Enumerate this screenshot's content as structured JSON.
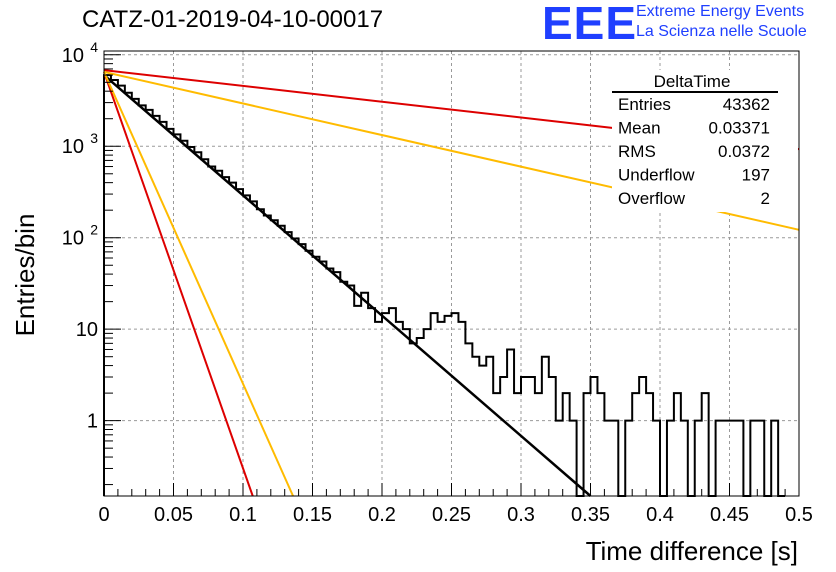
{
  "title": "CATZ-01-2019-04-10-00017",
  "logo": {
    "mark": "EEE",
    "line1": "Extreme Energy Events",
    "line2": "La Scienza nelle Scuole",
    "color": "#1f3fff"
  },
  "stats_box": {
    "title": "DeltaTime",
    "rows": [
      {
        "label": "Entries",
        "value": "43362"
      },
      {
        "label": "Mean",
        "value": "0.03371"
      },
      {
        "label": "RMS",
        "value": "0.0372"
      },
      {
        "label": "Underflow",
        "value": "197"
      },
      {
        "label": "Overflow",
        "value": "2"
      }
    ]
  },
  "chart_data": {
    "type": "line",
    "xlabel": "Time difference [s]",
    "ylabel": "Entries/bin",
    "xlim": [
      0,
      0.5
    ],
    "ylim": [
      0.15,
      11000
    ],
    "yscale": "log",
    "grid": true,
    "x_ticks": [
      "0",
      "0.05",
      "0.1",
      "0.15",
      "0.2",
      "0.25",
      "0.3",
      "0.35",
      "0.4",
      "0.45",
      "0.5"
    ],
    "y_ticks": [
      {
        "value": 1,
        "label": "1"
      },
      {
        "value": 10,
        "label": "10"
      },
      {
        "value": 100,
        "label": "10",
        "exp": "2"
      },
      {
        "value": 1000,
        "label": "10",
        "exp": "3"
      },
      {
        "value": 10000,
        "label": "10",
        "exp": "4"
      }
    ],
    "histogram": {
      "bin_width": 0.005,
      "color": "#000000",
      "values": [
        6000,
        5300,
        4600,
        3850,
        3300,
        2800,
        2500,
        2150,
        1850,
        1550,
        1350,
        1150,
        980,
        860,
        720,
        600,
        540,
        460,
        400,
        340,
        290,
        250,
        205,
        175,
        155,
        135,
        115,
        98,
        85,
        72,
        62,
        55,
        46,
        42,
        33,
        30,
        18,
        25,
        17,
        12,
        15,
        17,
        12,
        10,
        7,
        8,
        10,
        15,
        12,
        14,
        15,
        12,
        7,
        5,
        4,
        5,
        2,
        3,
        6,
        2,
        3,
        3,
        2,
        5,
        3,
        1,
        2,
        1,
        0.15,
        2,
        3,
        2,
        1,
        1,
        0.15,
        1,
        2,
        3,
        2,
        1,
        0.15,
        1,
        2,
        1,
        0.15,
        1,
        2,
        0.15,
        1,
        1,
        1,
        1,
        0.15,
        1,
        1,
        0.15,
        1,
        0.15
      ]
    },
    "fits": [
      {
        "color": "#000000",
        "width": 2.5,
        "x": [
          0,
          0.35
        ],
        "y": [
          6000,
          0.15
        ]
      },
      {
        "color": "#dd0000",
        "width": 2,
        "x": [
          0,
          0.107
        ],
        "y": [
          6500,
          0.15
        ]
      },
      {
        "color": "#ffbb00",
        "width": 2,
        "x": [
          0,
          0.136
        ],
        "y": [
          6500,
          0.15
        ]
      },
      {
        "color": "#dd0000",
        "width": 2,
        "x": [
          0,
          0.5
        ],
        "y": [
          6800,
          930
        ]
      },
      {
        "color": "#ffbb00",
        "width": 2,
        "x": [
          0,
          0.5
        ],
        "y": [
          6500,
          122
        ]
      }
    ]
  }
}
